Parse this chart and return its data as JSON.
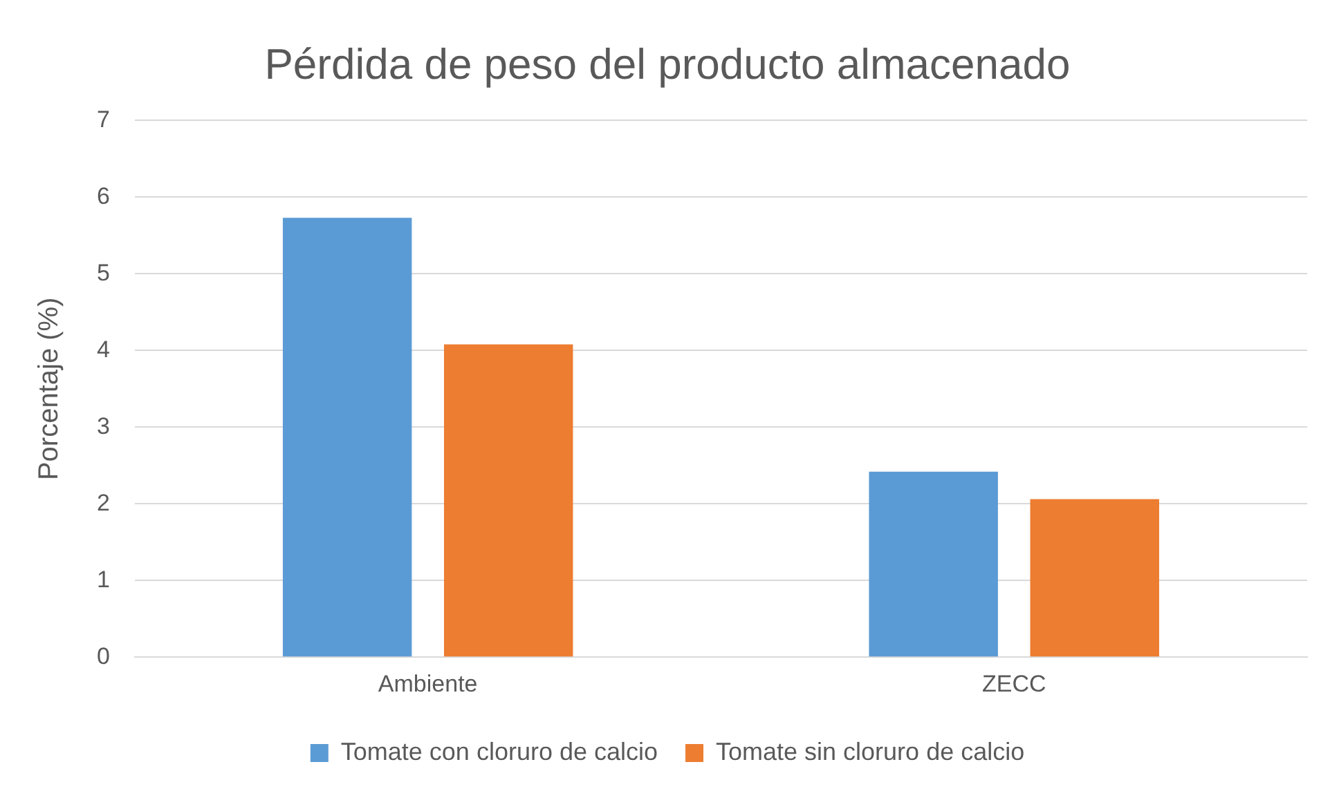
{
  "chart_data": {
    "type": "bar",
    "title": "Pérdida de peso del producto almacenado",
    "ylabel": "Porcentaje (%)",
    "categories": [
      "Ambiente",
      "ZECC"
    ],
    "series": [
      {
        "name": "Tomate con cloruro de calcio",
        "color": "#5b9bd5",
        "values": [
          5.73,
          2.42
        ]
      },
      {
        "name": "Tomate sin cloruro de calcio",
        "color": "#ed7d31",
        "values": [
          4.08,
          2.06
        ]
      }
    ],
    "ylim": [
      0,
      7
    ],
    "yticks": [
      0,
      1,
      2,
      3,
      4,
      5,
      6,
      7
    ],
    "grid": "y",
    "legend": "bottom"
  }
}
